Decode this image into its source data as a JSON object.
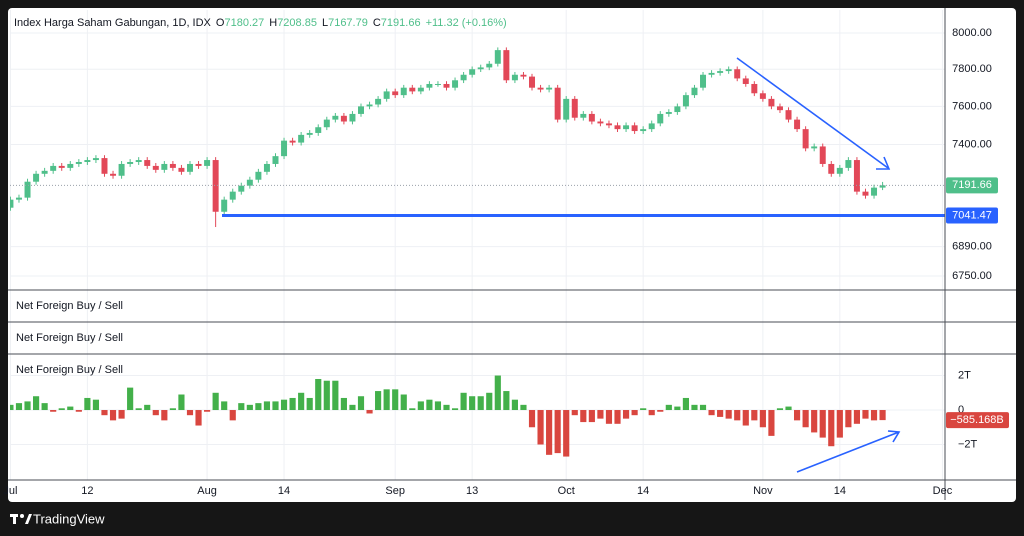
{
  "chart_data": [
    {
      "type": "candlestick",
      "title": "Index Harga Saham Gabungan, 1D, IDX",
      "legend": {
        "labels": [
          "O",
          "H",
          "L",
          "C"
        ],
        "values": [
          7180.27,
          7208.85,
          7167.79,
          7191.66
        ],
        "change": "+11.32 (+0.16%)"
      },
      "log_scale": true,
      "grid": true,
      "up_color": "#4fbf8a",
      "down_color": "#e24858",
      "ylim": [
        6684,
        8130
      ],
      "yticks": [
        {
          "value": 8000,
          "label": "8000.00"
        },
        {
          "value": 7800,
          "label": "7800.00"
        },
        {
          "value": 7600,
          "label": "7600.00"
        },
        {
          "value": 7400,
          "label": "7400.00"
        },
        {
          "value": 6890,
          "label": "6890.00"
        },
        {
          "value": 6750,
          "label": "6750.00"
        }
      ],
      "last_price": 7191.66,
      "hline": {
        "value": 7041.47,
        "color": "#2962ff"
      },
      "open": [
        7080,
        7120,
        7130,
        7210,
        7250,
        7265,
        7290,
        7280,
        7300,
        7310,
        7320,
        7330,
        7250,
        7240,
        7300,
        7310,
        7320,
        7290,
        7270,
        7300,
        7280,
        7260,
        7300,
        7290,
        7320,
        7060,
        7120,
        7160,
        7190,
        7220,
        7260,
        7300,
        7340,
        7420,
        7410,
        7450,
        7460,
        7490,
        7530,
        7550,
        7520,
        7560,
        7600,
        7610,
        7640,
        7680,
        7660,
        7700,
        7680,
        7700,
        7720,
        7720,
        7700,
        7740,
        7770,
        7800,
        7810,
        7830,
        7905,
        7740,
        7770,
        7760,
        7700,
        7690,
        7700,
        7530,
        7640,
        7540,
        7560,
        7520,
        7510,
        7500,
        7480,
        7500,
        7470,
        7480,
        7510,
        7560,
        7570,
        7600,
        7660,
        7700,
        7770,
        7780,
        7790,
        7800,
        7750,
        7720,
        7670,
        7640,
        7600,
        7580,
        7530,
        7480,
        7380,
        7390,
        7300,
        7250,
        7280,
        7320,
        7160,
        7140,
        7180.27
      ],
      "high": [
        7135,
        7145,
        7225,
        7265,
        7280,
        7305,
        7305,
        7315,
        7325,
        7335,
        7345,
        7345,
        7265,
        7315,
        7325,
        7335,
        7335,
        7305,
        7315,
        7315,
        7295,
        7315,
        7315,
        7335,
        7335,
        7135,
        7175,
        7205,
        7235,
        7275,
        7315,
        7355,
        7435,
        7435,
        7465,
        7475,
        7505,
        7545,
        7565,
        7565,
        7575,
        7615,
        7625,
        7655,
        7695,
        7695,
        7715,
        7715,
        7715,
        7735,
        7735,
        7735,
        7755,
        7785,
        7815,
        7825,
        7845,
        7920,
        7920,
        7785,
        7785,
        7775,
        7715,
        7715,
        7715,
        7655,
        7655,
        7575,
        7575,
        7535,
        7525,
        7515,
        7515,
        7515,
        7495,
        7525,
        7575,
        7585,
        7615,
        7675,
        7715,
        7785,
        7795,
        7805,
        7815,
        7815,
        7765,
        7735,
        7685,
        7655,
        7615,
        7595,
        7545,
        7495,
        7405,
        7405,
        7315,
        7295,
        7335,
        7335,
        7175,
        7195,
        7208.85
      ],
      "low": [
        7065,
        7105,
        7115,
        7195,
        7235,
        7250,
        7265,
        7265,
        7285,
        7295,
        7305,
        7235,
        7225,
        7225,
        7285,
        7295,
        7275,
        7255,
        7255,
        7265,
        7245,
        7245,
        7275,
        7275,
        6985,
        7045,
        7105,
        7145,
        7175,
        7205,
        7245,
        7285,
        7325,
        7395,
        7395,
        7435,
        7445,
        7475,
        7515,
        7505,
        7505,
        7545,
        7585,
        7595,
        7625,
        7645,
        7645,
        7665,
        7665,
        7685,
        7705,
        7685,
        7685,
        7725,
        7755,
        7785,
        7795,
        7815,
        7725,
        7725,
        7745,
        7685,
        7675,
        7675,
        7515,
        7515,
        7525,
        7525,
        7505,
        7495,
        7485,
        7465,
        7465,
        7455,
        7455,
        7465,
        7495,
        7545,
        7555,
        7585,
        7645,
        7685,
        7755,
        7765,
        7775,
        7735,
        7705,
        7655,
        7625,
        7585,
        7565,
        7515,
        7465,
        7365,
        7365,
        7285,
        7235,
        7235,
        7265,
        7145,
        7125,
        7125,
        7167.79
      ],
      "close": [
        7120,
        7130,
        7210,
        7250,
        7265,
        7290,
        7280,
        7300,
        7310,
        7320,
        7330,
        7250,
        7240,
        7300,
        7310,
        7320,
        7290,
        7270,
        7300,
        7280,
        7260,
        7300,
        7290,
        7320,
        7060,
        7120,
        7160,
        7190,
        7220,
        7260,
        7300,
        7340,
        7420,
        7410,
        7450,
        7460,
        7490,
        7530,
        7550,
        7520,
        7560,
        7600,
        7610,
        7640,
        7680,
        7660,
        7700,
        7680,
        7700,
        7720,
        7720,
        7700,
        7740,
        7770,
        7800,
        7810,
        7830,
        7905,
        7740,
        7770,
        7760,
        7700,
        7690,
        7700,
        7530,
        7640,
        7540,
        7560,
        7520,
        7510,
        7500,
        7480,
        7500,
        7470,
        7480,
        7510,
        7560,
        7570,
        7600,
        7660,
        7700,
        7770,
        7780,
        7790,
        7800,
        7750,
        7720,
        7670,
        7640,
        7600,
        7580,
        7530,
        7480,
        7380,
        7390,
        7300,
        7250,
        7280,
        7320,
        7160,
        7140,
        7180,
        7191.66
      ]
    },
    {
      "type": "bar",
      "title": "Net Foreign Buy / Sell",
      "up_color": "#43b04a",
      "down_color": "#d9463f",
      "ylim": [
        -4.06,
        3.25
      ],
      "yticks": [
        {
          "value": 2,
          "label": "2T"
        },
        0,
        {
          "value": -2,
          "label": "−2T"
        }
      ],
      "last_value": {
        "value": -0.585168,
        "label": "−585.168B"
      },
      "xlim": [
        -0.05,
        109.3
      ],
      "xticks": [
        {
          "value": 0,
          "label": "Jul"
        },
        {
          "value": 9,
          "label": "12"
        },
        {
          "value": 23,
          "label": "Aug"
        },
        {
          "value": 32,
          "label": "14"
        },
        {
          "value": 45,
          "label": "Sep"
        },
        {
          "value": 54,
          "label": "13"
        },
        {
          "value": 65,
          "label": "Oct"
        },
        {
          "value": 74,
          "label": "14"
        },
        {
          "value": 88,
          "label": "Nov"
        },
        {
          "value": 97,
          "label": "14"
        },
        {
          "value": 109,
          "label": "Dec"
        }
      ],
      "values": [
        0.3,
        0.4,
        0.5,
        0.8,
        0.4,
        -0.1,
        0.1,
        0.2,
        -0.1,
        0.7,
        0.6,
        -0.3,
        -0.6,
        -0.5,
        1.3,
        0.1,
        0.3,
        -0.3,
        -0.6,
        0.1,
        0.9,
        -0.3,
        -0.9,
        -0.1,
        1.0,
        0.5,
        -0.6,
        0.4,
        0.3,
        0.4,
        0.5,
        0.5,
        0.6,
        0.7,
        1.0,
        0.7,
        1.8,
        1.7,
        1.7,
        0.7,
        0.3,
        0.8,
        -0.2,
        1.1,
        1.2,
        1.2,
        0.9,
        0.1,
        0.5,
        0.6,
        0.5,
        0.3,
        0.1,
        1.0,
        0.8,
        0.8,
        1.0,
        2.0,
        1.1,
        0.6,
        0.3,
        -1.0,
        -2.0,
        -2.6,
        -2.5,
        -2.7,
        -0.3,
        -0.7,
        -0.7,
        -0.5,
        -0.8,
        -0.8,
        -0.5,
        -0.3,
        0.1,
        -0.3,
        -0.1,
        0.3,
        0.2,
        0.7,
        0.3,
        0.3,
        -0.3,
        -0.4,
        -0.5,
        -0.6,
        -0.9,
        -0.6,
        -1.0,
        -1.5,
        0.1,
        0.2,
        -0.6,
        -1.0,
        -1.3,
        -1.6,
        -2.1,
        -1.6,
        -1.0,
        -0.8,
        -0.5,
        -0.6,
        -0.585168
      ]
    }
  ],
  "empty_panes": [
    "Net Foreign Buy / Sell",
    "Net Foreign Buy / Sell"
  ],
  "footer": "TradingView"
}
